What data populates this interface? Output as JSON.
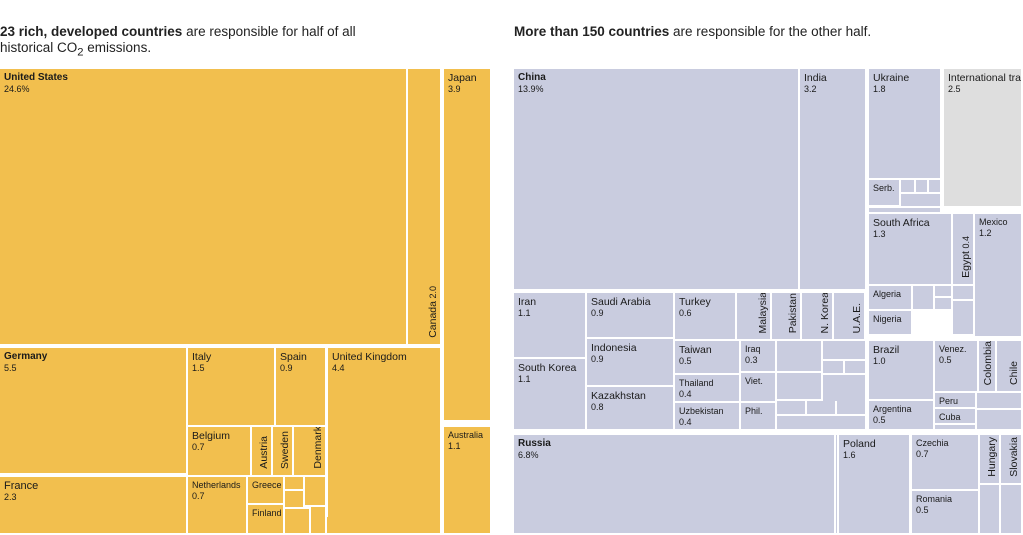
{
  "headline_left": {
    "bold": "23 rich, developed countries",
    "rest_a": " are responsible for half of all historical CO",
    "sub": "2",
    "rest_b": " emissions."
  },
  "headline_right": {
    "bold": "More than 150 countries",
    "rest": " are responsible for the other half."
  },
  "colors": {
    "developed": "#f2bf4e",
    "rest_of_world": "#c9ccdf",
    "international": "#dedede"
  },
  "chart_data": [
    {
      "type": "treemap",
      "title": "23 rich, developed countries are responsible for half of all historical CO2 emissions.",
      "unit": "percent of historical CO2 emissions",
      "cells": [
        {
          "name": "United States",
          "value": 24.6,
          "label": "24.6%"
        },
        {
          "name": "Canada",
          "value": 2.0,
          "label": "2.0"
        },
        {
          "name": "Japan",
          "value": 3.9,
          "label": "3.9"
        },
        {
          "name": "Australia",
          "value": 1.1,
          "label": "1.1"
        },
        {
          "name": "Germany",
          "value": 5.5,
          "label": "5.5"
        },
        {
          "name": "France",
          "value": 2.3,
          "label": "2.3"
        },
        {
          "name": "Italy",
          "value": 1.5,
          "label": "1.5"
        },
        {
          "name": "Spain",
          "value": 0.9,
          "label": "0.9"
        },
        {
          "name": "Belgium",
          "value": 0.7,
          "label": "0.7"
        },
        {
          "name": "Austria",
          "value": null,
          "label": ""
        },
        {
          "name": "Sweden",
          "value": null,
          "label": ""
        },
        {
          "name": "Denmark",
          "value": null,
          "label": ""
        },
        {
          "name": "Netherlands",
          "value": 0.7,
          "label": "0.7"
        },
        {
          "name": "Greece",
          "value": null,
          "label": ""
        },
        {
          "name": "Finland",
          "value": null,
          "label": ""
        },
        {
          "name": "United Kingdom",
          "value": 4.4,
          "label": "4.4"
        }
      ]
    },
    {
      "type": "treemap",
      "title": "More than 150 countries are responsible for the other half.",
      "unit": "percent of historical CO2 emissions",
      "cells": [
        {
          "name": "China",
          "value": 13.9,
          "label": "13.9%"
        },
        {
          "name": "India",
          "value": 3.2,
          "label": "3.2"
        },
        {
          "name": "Ukraine",
          "value": 1.8,
          "label": "1.8"
        },
        {
          "name": "Serb.",
          "value": null,
          "label": ""
        },
        {
          "name": "International transport",
          "value": 2.5,
          "label": "2.5"
        },
        {
          "name": "South Africa",
          "value": 1.3,
          "label": "1.3"
        },
        {
          "name": "Egypt",
          "value": 0.4,
          "label": "0.4"
        },
        {
          "name": "Mexico",
          "value": 1.2,
          "label": "1.2"
        },
        {
          "name": "Algeria",
          "value": null,
          "label": ""
        },
        {
          "name": "Nigeria",
          "value": null,
          "label": ""
        },
        {
          "name": "Iran",
          "value": 1.1,
          "label": "1.1"
        },
        {
          "name": "South Korea",
          "value": 1.1,
          "label": "1.1"
        },
        {
          "name": "Saudi Arabia",
          "value": 0.9,
          "label": "0.9"
        },
        {
          "name": "Indonesia",
          "value": 0.9,
          "label": "0.9"
        },
        {
          "name": "Kazakhstan",
          "value": 0.8,
          "label": "0.8"
        },
        {
          "name": "Turkey",
          "value": 0.6,
          "label": "0.6"
        },
        {
          "name": "Malaysia",
          "value": null,
          "label": ""
        },
        {
          "name": "Pakistan",
          "value": null,
          "label": ""
        },
        {
          "name": "N. Korea",
          "value": null,
          "label": ""
        },
        {
          "name": "U.A.E.",
          "value": null,
          "label": ""
        },
        {
          "name": "Taiwan",
          "value": 0.5,
          "label": "0.5"
        },
        {
          "name": "Iraq",
          "value": 0.3,
          "label": "0.3"
        },
        {
          "name": "Thailand",
          "value": 0.4,
          "label": "0.4"
        },
        {
          "name": "Viet.",
          "value": null,
          "label": ""
        },
        {
          "name": "Uzbekistan",
          "value": 0.4,
          "label": "0.4"
        },
        {
          "name": "Phil.",
          "value": null,
          "label": ""
        },
        {
          "name": "Brazil",
          "value": 1.0,
          "label": "1.0"
        },
        {
          "name": "Venez.",
          "value": 0.5,
          "label": "0.5"
        },
        {
          "name": "Colombia",
          "value": null,
          "label": ""
        },
        {
          "name": "Chile",
          "value": null,
          "label": ""
        },
        {
          "name": "Argentina",
          "value": 0.5,
          "label": "0.5"
        },
        {
          "name": "Peru",
          "value": null,
          "label": ""
        },
        {
          "name": "Cuba",
          "value": null,
          "label": ""
        },
        {
          "name": "Russia",
          "value": 6.8,
          "label": "6.8%"
        },
        {
          "name": "Poland",
          "value": 1.6,
          "label": "1.6"
        },
        {
          "name": "Czechia",
          "value": 0.7,
          "label": "0.7"
        },
        {
          "name": "Hungary",
          "value": null,
          "label": ""
        },
        {
          "name": "Slovakia",
          "value": null,
          "label": ""
        },
        {
          "name": "Romania",
          "value": 0.5,
          "label": "0.5"
        }
      ]
    }
  ]
}
